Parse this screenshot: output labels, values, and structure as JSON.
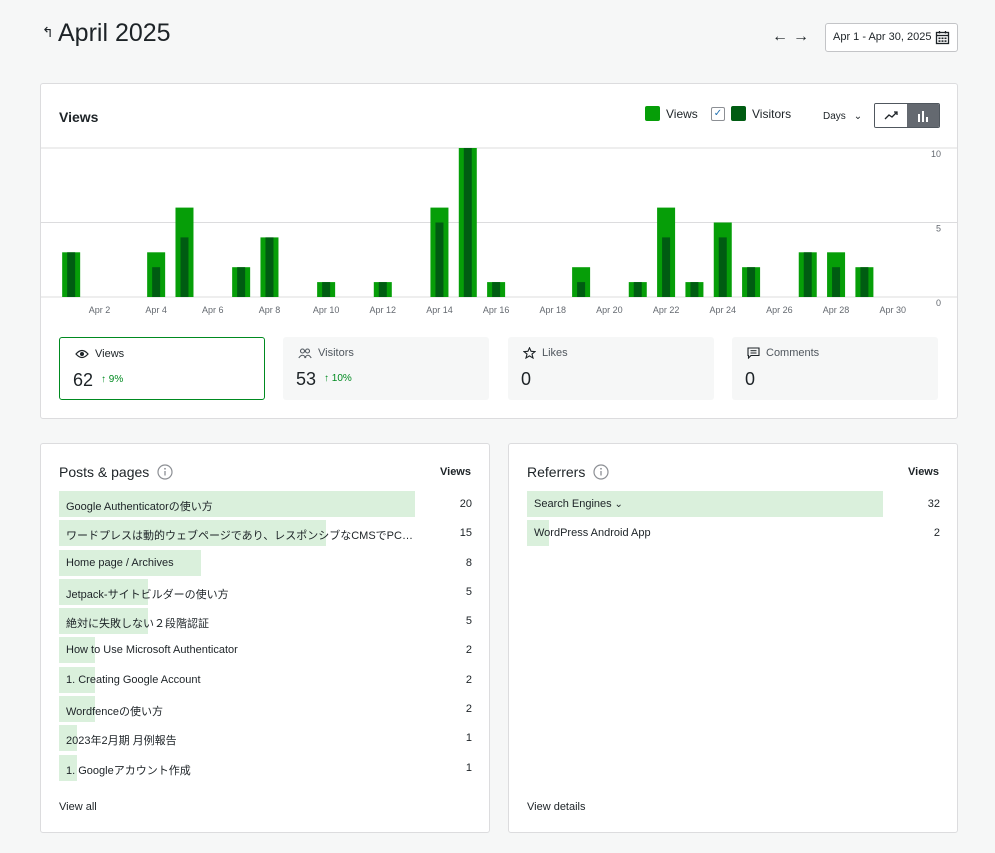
{
  "header": {
    "title": "April 2025",
    "date_range": "Apr 1 - Apr 30, 2025"
  },
  "chart_panel": {
    "title": "Views",
    "legend_views": "Views",
    "legend_visitors": "Visitors",
    "visitors_checked": true,
    "period": "Days",
    "colors": {
      "views": "#069e08",
      "visitors": "#005c12"
    }
  },
  "chart_data": {
    "type": "bar",
    "x": [
      "Apr 1",
      "Apr 2",
      "Apr 3",
      "Apr 4",
      "Apr 5",
      "Apr 6",
      "Apr 7",
      "Apr 8",
      "Apr 9",
      "Apr 10",
      "Apr 11",
      "Apr 12",
      "Apr 13",
      "Apr 14",
      "Apr 15",
      "Apr 16",
      "Apr 17",
      "Apr 18",
      "Apr 19",
      "Apr 20",
      "Apr 21",
      "Apr 22",
      "Apr 23",
      "Apr 24",
      "Apr 25",
      "Apr 26",
      "Apr 27",
      "Apr 28",
      "Apr 29",
      "Apr 30"
    ],
    "tick_labels": [
      "Apr 2",
      "Apr 4",
      "Apr 6",
      "Apr 8",
      "Apr 10",
      "Apr 12",
      "Apr 14",
      "Apr 16",
      "Apr 18",
      "Apr 20",
      "Apr 22",
      "Apr 24",
      "Apr 26",
      "Apr 28",
      "Apr 30"
    ],
    "y_ticks": [
      0,
      5,
      10
    ],
    "ylim": [
      0,
      10
    ],
    "series": [
      {
        "name": "Views",
        "values": [
          3,
          0,
          0,
          3,
          6,
          0,
          2,
          4,
          0,
          1,
          0,
          1,
          0,
          6,
          10,
          1,
          0,
          0,
          2,
          0,
          1,
          6,
          1,
          5,
          2,
          0,
          3,
          3,
          2,
          0
        ]
      },
      {
        "name": "Visitors",
        "values": [
          3,
          0,
          0,
          2,
          4,
          0,
          2,
          4,
          0,
          1,
          0,
          1,
          0,
          5,
          10,
          1,
          0,
          0,
          1,
          0,
          1,
          4,
          1,
          4,
          2,
          0,
          3,
          2,
          2,
          0
        ]
      }
    ]
  },
  "stats": [
    {
      "label": "Views",
      "value": "62",
      "change": "↑ 9%"
    },
    {
      "label": "Visitors",
      "value": "53",
      "change": "↑ 10%"
    },
    {
      "label": "Likes",
      "value": "0",
      "change": ""
    },
    {
      "label": "Comments",
      "value": "0",
      "change": ""
    }
  ],
  "posts": {
    "title": "Posts & pages",
    "column": "Views",
    "max": 20,
    "rows": [
      {
        "label": "Google Authenticatorの使い方",
        "value": 20
      },
      {
        "label": "ワードプレスは動的ウェブページであり、レスポンシブなCMSでPC・ス...",
        "value": 15
      },
      {
        "label": "Home page / Archives",
        "value": 8
      },
      {
        "label": "Jetpack-サイトビルダーの使い方",
        "value": 5
      },
      {
        "label": "絶対に失敗しない２段階認証",
        "value": 5
      },
      {
        "label": "How to Use Microsoft Authenticator",
        "value": 2
      },
      {
        "label": "1. Creating Google Account",
        "value": 2
      },
      {
        "label": "Wordfenceの使い方",
        "value": 2
      },
      {
        "label": "2023年2月期 月例報告",
        "value": 1
      },
      {
        "label": "1. Googleアカウント作成",
        "value": 1
      }
    ],
    "link": "View all"
  },
  "referrers": {
    "title": "Referrers",
    "column": "Views",
    "max": 32,
    "rows": [
      {
        "label": "Search Engines",
        "value": 32,
        "expandable": true
      },
      {
        "label": "WordPress Android App",
        "value": 2
      }
    ],
    "link": "View details"
  }
}
